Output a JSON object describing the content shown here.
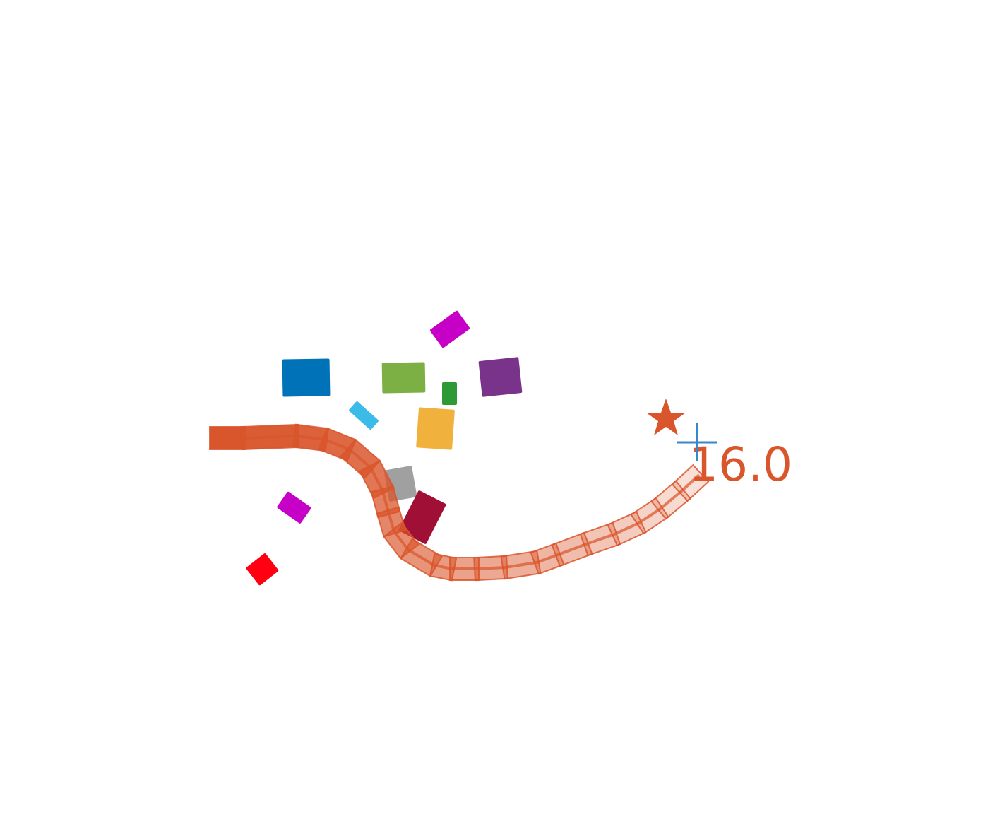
{
  "scene": {
    "background": "#ffffff",
    "label": "16.0"
  },
  "colors": {
    "path": "#d9552b",
    "label": "#d9552b",
    "star": "#d9552b",
    "crosshair": "#3a86c8"
  },
  "obstacles": [
    {
      "name": "blue-block",
      "color": "#0072b8"
    },
    {
      "name": "green-block",
      "color": "#7cb045"
    },
    {
      "name": "magenta-block-top",
      "color": "#c600c6"
    },
    {
      "name": "small-green-block",
      "color": "#2e9a36"
    },
    {
      "name": "purple-block",
      "color": "#7a338a"
    },
    {
      "name": "light-blue-block",
      "color": "#3bbbe8"
    },
    {
      "name": "orange-block",
      "color": "#f0b23d"
    },
    {
      "name": "gray-block",
      "color": "#a0a0a0"
    },
    {
      "name": "crimson-block",
      "color": "#a00f35"
    },
    {
      "name": "magenta-block-left",
      "color": "#c600c6"
    },
    {
      "name": "red-block",
      "color": "#ff0010"
    }
  ],
  "markers": {
    "goal_star_icon": "star-icon",
    "target_crosshair_icon": "crosshair-icon"
  }
}
